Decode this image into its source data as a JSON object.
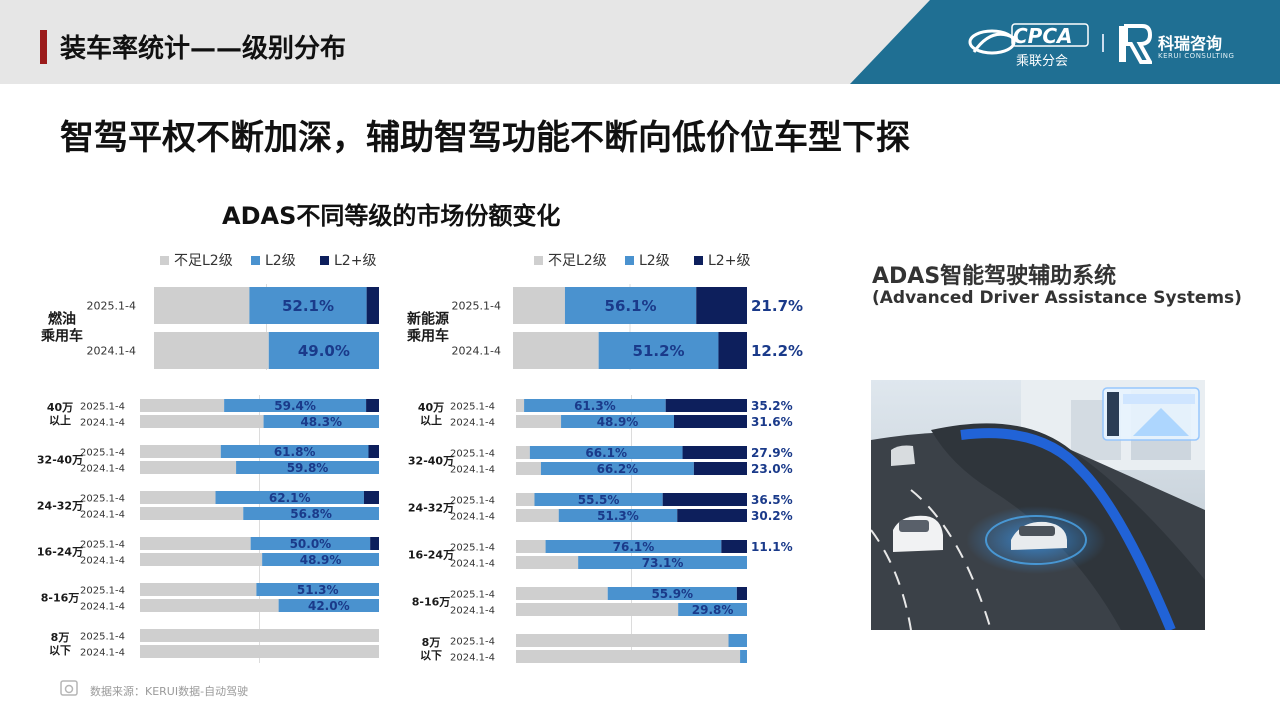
{
  "header": {
    "title": "装车率统计——级别分布"
  },
  "logos": {
    "cpca_text": "CPCA",
    "cpca_sub": "乘联分会",
    "kerui_text": "科瑞咨询",
    "kerui_sub": "KERUI CONSULTING"
  },
  "headline": "智驾平权不断加深，辅助智驾功能不断向低价位车型下探",
  "colors": {
    "below_l2": "#cfcfcf",
    "l2": "#4a92cf",
    "l2plus": "#0d1f5c",
    "header_bg": "#e6e6e6",
    "accent": "#9b1b1b",
    "logo_panel": "#1f6f93"
  },
  "chart_data": [
    {
      "type": "bar",
      "title": "ADAS不同等级的市场份额变化",
      "stacking": "stacked-100",
      "orientation": "horizontal",
      "legend": {
        "entries": [
          "不足L2级",
          "L2级",
          "L2+级"
        ],
        "placement": "top"
      },
      "groups": [
        {
          "name": "燃油\n乘用车",
          "rows": [
            {
              "period": "2025.1-4",
              "below_l2": 42.4,
              "l2": 52.1,
              "l2plus": 5.5,
              "l2_label": "52.1%"
            },
            {
              "period": "2024.1-4",
              "below_l2": 51.0,
              "l2": 49.0,
              "l2plus": 0,
              "l2_label": "49.0%"
            }
          ]
        }
      ]
    },
    {
      "type": "bar",
      "stacking": "stacked-100",
      "orientation": "horizontal",
      "legend": {
        "entries": [
          "不足L2级",
          "L2级",
          "L2+级"
        ],
        "placement": "top"
      },
      "groups": [
        {
          "name": "新能源\n乘用车",
          "rows": [
            {
              "period": "2025.1-4",
              "below_l2": 22.2,
              "l2": 56.1,
              "l2plus": 21.7,
              "l2_label": "56.1%",
              "l2plus_label": "21.7%"
            },
            {
              "period": "2024.1-4",
              "below_l2": 36.6,
              "l2": 51.2,
              "l2plus": 12.2,
              "l2_label": "51.2%",
              "l2plus_label": "12.2%"
            }
          ]
        }
      ]
    },
    {
      "type": "bar",
      "stacking": "stacked-100",
      "orientation": "horizontal",
      "segment": "燃油乘用车价位",
      "groups": [
        {
          "name": "40万\n以上",
          "rows": [
            {
              "period": "2025.1-4",
              "below_l2": 35.2,
              "l2": 59.4,
              "l2plus": 5.4,
              "l2_label": "59.4%"
            },
            {
              "period": "2024.1-4",
              "below_l2": 51.7,
              "l2": 48.3,
              "l2plus": 0,
              "l2_label": "48.3%"
            }
          ]
        },
        {
          "name": "32-40万",
          "rows": [
            {
              "period": "2025.1-4",
              "below_l2": 33.8,
              "l2": 61.8,
              "l2plus": 4.4,
              "l2_label": "61.8%"
            },
            {
              "period": "2024.1-4",
              "below_l2": 40.2,
              "l2": 59.8,
              "l2plus": 0,
              "l2_label": "59.8%"
            }
          ]
        },
        {
          "name": "24-32万",
          "rows": [
            {
              "period": "2025.1-4",
              "below_l2": 31.6,
              "l2": 62.1,
              "l2plus": 6.3,
              "l2_label": "62.1%"
            },
            {
              "period": "2024.1-4",
              "below_l2": 43.2,
              "l2": 56.8,
              "l2plus": 0,
              "l2_label": "56.8%"
            }
          ]
        },
        {
          "name": "16-24万",
          "rows": [
            {
              "period": "2025.1-4",
              "below_l2": 46.3,
              "l2": 50.0,
              "l2plus": 3.7,
              "l2_label": "50.0%"
            },
            {
              "period": "2024.1-4",
              "below_l2": 51.1,
              "l2": 48.9,
              "l2plus": 0,
              "l2_label": "48.9%"
            }
          ]
        },
        {
          "name": "8-16万",
          "rows": [
            {
              "period": "2025.1-4",
              "below_l2": 48.7,
              "l2": 51.3,
              "l2plus": 0,
              "l2_label": "51.3%"
            },
            {
              "period": "2024.1-4",
              "below_l2": 58.0,
              "l2": 42.0,
              "l2plus": 0,
              "l2_label": "42.0%"
            }
          ]
        },
        {
          "name": "8万\n以下",
          "rows": [
            {
              "period": "2025.1-4",
              "below_l2": 100,
              "l2": 0,
              "l2plus": 0
            },
            {
              "period": "2024.1-4",
              "below_l2": 100,
              "l2": 0,
              "l2plus": 0
            }
          ]
        }
      ]
    },
    {
      "type": "bar",
      "stacking": "stacked-100",
      "orientation": "horizontal",
      "segment": "新能源乘用车价位",
      "groups": [
        {
          "name": "40万\n以上",
          "rows": [
            {
              "period": "2025.1-4",
              "below_l2": 3.5,
              "l2": 61.3,
              "l2plus": 35.2,
              "l2_label": "61.3%",
              "l2plus_label": "35.2%"
            },
            {
              "period": "2024.1-4",
              "below_l2": 19.5,
              "l2": 48.9,
              "l2plus": 31.6,
              "l2_label": "48.9%",
              "l2plus_label": "31.6%"
            }
          ]
        },
        {
          "name": "32-40万",
          "rows": [
            {
              "period": "2025.1-4",
              "below_l2": 6.0,
              "l2": 66.1,
              "l2plus": 27.9,
              "l2_label": "66.1%",
              "l2plus_label": "27.9%"
            },
            {
              "period": "2024.1-4",
              "below_l2": 10.8,
              "l2": 66.2,
              "l2plus": 23.0,
              "l2_label": "66.2%",
              "l2plus_label": "23.0%"
            }
          ]
        },
        {
          "name": "24-32万",
          "rows": [
            {
              "period": "2025.1-4",
              "below_l2": 8.0,
              "l2": 55.5,
              "l2plus": 36.5,
              "l2_label": "55.5%",
              "l2plus_label": "36.5%"
            },
            {
              "period": "2024.1-4",
              "below_l2": 18.5,
              "l2": 51.3,
              "l2plus": 30.2,
              "l2_label": "51.3%",
              "l2plus_label": "30.2%"
            }
          ]
        },
        {
          "name": "16-24万",
          "rows": [
            {
              "period": "2025.1-4",
              "below_l2": 12.8,
              "l2": 76.1,
              "l2plus": 11.1,
              "l2_label": "76.1%",
              "l2plus_label": "11.1%"
            },
            {
              "period": "2024.1-4",
              "below_l2": 26.9,
              "l2": 73.1,
              "l2plus": 0,
              "l2_label": "73.1%"
            }
          ]
        },
        {
          "name": "8-16万",
          "rows": [
            {
              "period": "2025.1-4",
              "below_l2": 39.7,
              "l2": 55.9,
              "l2plus": 4.4,
              "l2_label": "55.9%"
            },
            {
              "period": "2024.1-4",
              "below_l2": 70.2,
              "l2": 29.8,
              "l2plus": 0,
              "l2_label": "29.8%"
            }
          ]
        },
        {
          "name": "8万\n以下",
          "rows": [
            {
              "period": "2025.1-4",
              "below_l2": 92.0,
              "l2": 8.0,
              "l2plus": 0
            },
            {
              "period": "2024.1-4",
              "below_l2": 97.0,
              "l2": 3.0,
              "l2plus": 0
            }
          ]
        }
      ]
    }
  ],
  "adas": {
    "title": "ADAS智能驾驶辅助系统",
    "subtitle": "(Advanced Driver Assistance Systems)"
  },
  "source": "数据来源：KERUI数据-自动驾驶"
}
